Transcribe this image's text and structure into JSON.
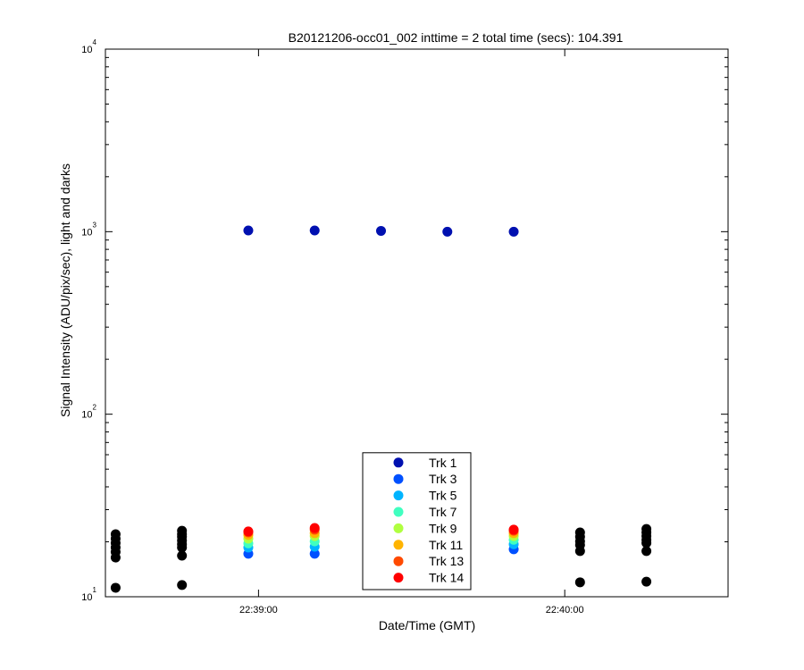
{
  "chart_data": {
    "type": "scatter",
    "title": "B20121206-occ01_002 inttime = 2 total time (secs): 104.391",
    "xlabel": "Date/Time (GMT)",
    "ylabel": "Signal Intensity (ADU/pix/sec), light and darks",
    "yscale": "log",
    "legend_position": "south",
    "xlim": [
      "22:38:30",
      "22:40:32"
    ],
    "xticks": [
      "22:39:00",
      "22:40:00"
    ],
    "ylim": [
      10,
      10000
    ],
    "yticks": [
      {
        "value": 10,
        "label": "10",
        "exponent": "1"
      },
      {
        "value": 100,
        "label": "10",
        "exponent": "2"
      },
      {
        "value": 1000,
        "label": "10",
        "exponent": "3"
      },
      {
        "value": 10000,
        "label": "10",
        "exponent": "4"
      }
    ],
    "series": [
      {
        "color": "#000000",
        "x": [
          "22:38:32",
          "22:38:32",
          "22:38:32",
          "22:38:32",
          "22:38:32",
          "22:38:32",
          "22:38:32",
          "22:38:45",
          "22:38:45",
          "22:38:45",
          "22:38:45",
          "22:38:45",
          "22:38:45",
          "22:38:45",
          "22:38:45",
          "22:40:03",
          "22:40:03",
          "22:40:03",
          "22:40:03",
          "22:40:03",
          "22:40:03",
          "22:40:16",
          "22:40:16",
          "22:40:16",
          "22:40:16",
          "22:40:16",
          "22:40:16",
          "22:40:16"
        ],
        "values": [
          22.0,
          20.8,
          19.7,
          18.6,
          17.6,
          16.4,
          11.2,
          23.0,
          22.0,
          21.3,
          20.3,
          19.4,
          18.6,
          16.8,
          11.6,
          22.5,
          21.3,
          20.1,
          19.2,
          17.8,
          12.0,
          23.5,
          22.5,
          21.5,
          20.5,
          19.7,
          17.8,
          12.1
        ]
      },
      {
        "name": "Trk 1",
        "color": "#0010b0",
        "x": [
          "22:38:58",
          "22:39:11",
          "22:39:24",
          "22:39:37",
          "22:39:50"
        ],
        "values": [
          1015,
          1015,
          1010,
          1000,
          1000
        ]
      },
      {
        "name": "Trk 3",
        "color": "#0050ff",
        "x": [
          "22:38:58",
          "22:39:11",
          "22:39:50"
        ],
        "values": [
          17.2,
          17.2,
          18.2
        ]
      },
      {
        "name": "Trk 5",
        "color": "#00b4ff",
        "x": [
          "22:38:58",
          "22:39:11",
          "22:39:50"
        ],
        "values": [
          18.6,
          18.8,
          19.4
        ]
      },
      {
        "name": "Trk 7",
        "color": "#40ffc0",
        "x": [
          "22:38:58",
          "22:39:11",
          "22:39:50"
        ],
        "values": [
          19.6,
          20.1,
          20.5
        ]
      },
      {
        "name": "Trk 9",
        "color": "#b0ff40",
        "x": [
          "22:38:58",
          "22:39:11",
          "22:39:50"
        ],
        "values": [
          20.8,
          21.5,
          21.5
        ]
      },
      {
        "name": "Trk 11",
        "color": "#ffb400",
        "x": [
          "22:38:58",
          "22:39:11",
          "22:39:50"
        ],
        "values": [
          21.8,
          22.3,
          22.3
        ]
      },
      {
        "name": "Trk 13",
        "color": "#ff4a00",
        "x": [
          "22:38:58",
          "22:39:11",
          "22:39:50"
        ],
        "values": [
          22.5,
          23.3,
          23.0
        ]
      },
      {
        "name": "Trk 14",
        "color": "#ff0000",
        "x": [
          "22:38:58",
          "22:39:11",
          "22:39:50"
        ],
        "values": [
          22.8,
          23.8,
          23.3
        ]
      }
    ]
  }
}
